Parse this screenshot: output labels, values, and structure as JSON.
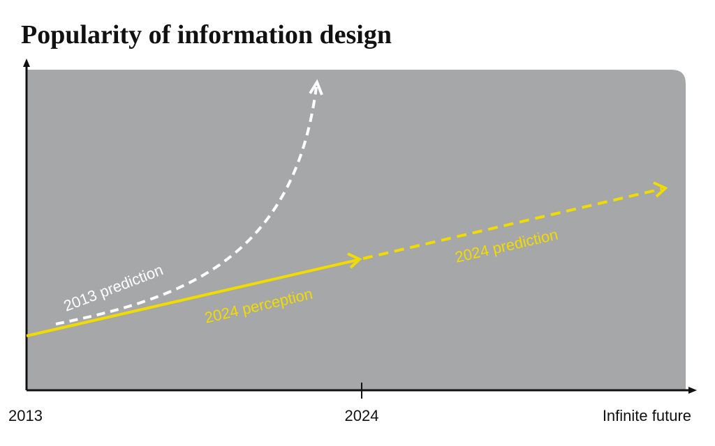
{
  "title": "Popularity of information design",
  "x_labels": [
    "2013",
    "2024",
    "Infinite future"
  ],
  "annotations": {
    "prediction_2013": "2013 prediction",
    "perception_2024": "2024 perception",
    "prediction_2024": "2024 prediction"
  }
}
